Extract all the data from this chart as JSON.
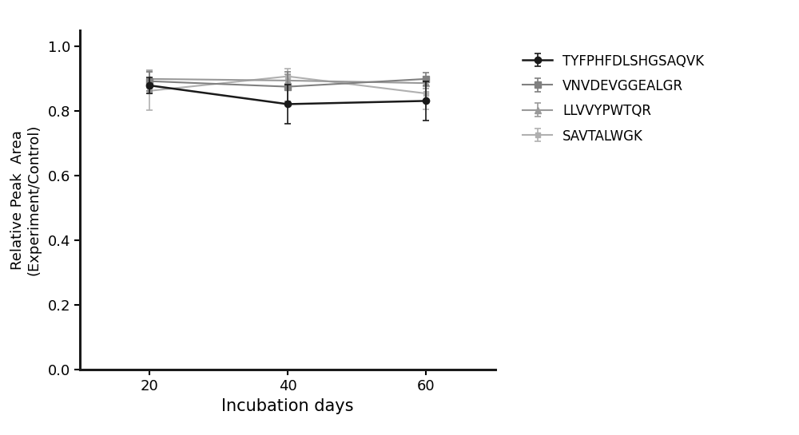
{
  "x": [
    20,
    40,
    60
  ],
  "series": [
    {
      "label": "TYFPHFDLSHGSAQVK",
      "y": [
        0.88,
        0.822,
        0.832
      ],
      "yerr": [
        0.025,
        0.06,
        0.06
      ],
      "color": "#1a1a1a",
      "marker": "o",
      "marker_size": 6,
      "linewidth": 1.8,
      "zorder": 5
    },
    {
      "label": "VNVDEVGGEALGR",
      "y": [
        0.893,
        0.876,
        0.9
      ],
      "yerr": [
        0.03,
        0.045,
        0.02
      ],
      "color": "#808080",
      "marker": "s",
      "marker_size": 6,
      "linewidth": 1.5,
      "zorder": 4
    },
    {
      "label": "LLVVYPWTQR",
      "y": [
        0.9,
        0.895,
        0.887
      ],
      "yerr": [
        0.028,
        0.02,
        0.018
      ],
      "color": "#999999",
      "marker": "^",
      "marker_size": 6,
      "linewidth": 1.5,
      "zorder": 3
    },
    {
      "label": "SAVTALWGK",
      "y": [
        0.863,
        0.908,
        0.855
      ],
      "yerr": [
        0.06,
        0.025,
        0.05
      ],
      "color": "#b0b0b0",
      "marker": "s",
      "marker_size": 5,
      "linewidth": 1.5,
      "zorder": 2
    }
  ],
  "xlabel": "Incubation days",
  "ylabel": "Relative Peak  Area\n(Experiment/Control)",
  "xlim": [
    10,
    70
  ],
  "ylim": [
    0.0,
    1.05
  ],
  "yticks": [
    0.0,
    0.2,
    0.4,
    0.6,
    0.8,
    1.0
  ],
  "xticks": [
    20,
    40,
    60
  ],
  "axis_color": "#1a1a1a",
  "background_color": "#ffffff",
  "xlabel_fontsize": 15,
  "ylabel_fontsize": 13,
  "tick_fontsize": 13,
  "legend_fontsize": 12
}
